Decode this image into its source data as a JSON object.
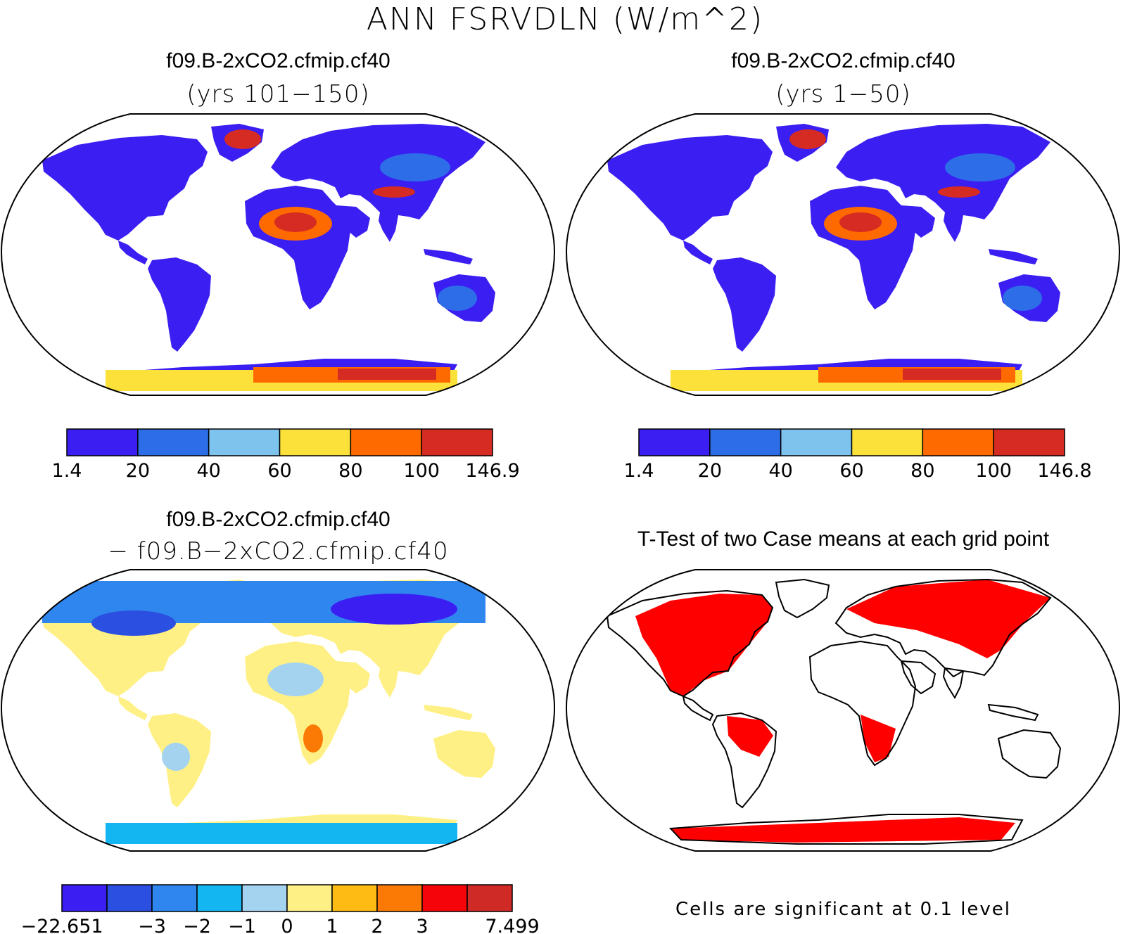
{
  "title": "ANN FSRVDLN (W/m^2)",
  "panels": {
    "a": {
      "title": "f09.B-2xCO2.cfmip.cf40",
      "subtitle": "(yrs 101−150)"
    },
    "b": {
      "title": "f09.B-2xCO2.cfmip.cf40",
      "subtitle": "(yrs 1−50)"
    },
    "c": {
      "title": "f09.B-2xCO2.cfmip.cf40",
      "subtitle": "− f09.B−2xCO2.cfmip.cf40"
    },
    "d": {
      "title": "T-Test of two Case means at each grid point",
      "note": "Cells are significant at 0.1 level"
    }
  },
  "colorbars": {
    "a": {
      "colors": [
        "#3b1ff2",
        "#2d6ee8",
        "#7ec3ee",
        "#fbe13a",
        "#ff6a00",
        "#d52b22"
      ],
      "labels": [
        "1.4",
        "20",
        "40",
        "60",
        "80",
        "100",
        "146.9"
      ]
    },
    "b": {
      "colors": [
        "#3b1ff2",
        "#2d6ee8",
        "#7ec3ee",
        "#fbe13a",
        "#ff6a00",
        "#d52b22"
      ],
      "labels": [
        "1.4",
        "20",
        "40",
        "60",
        "80",
        "100",
        "146.8"
      ]
    },
    "c": {
      "colors": [
        "#3b1ff2",
        "#2b4fe0",
        "#2f86ee",
        "#14b6f2",
        "#a4d3f0",
        "#fff085",
        "#fdbb14",
        "#fb7a05",
        "#f5040a",
        "#d02a26"
      ],
      "labels": [
        "−22.651",
        "−3",
        "−2",
        "−1",
        "0",
        "1",
        "2",
        "3",
        "7.499"
      ]
    }
  },
  "colors": {
    "significant": "#ff0000",
    "ocean": "#ffffff",
    "coast": "#000000"
  }
}
